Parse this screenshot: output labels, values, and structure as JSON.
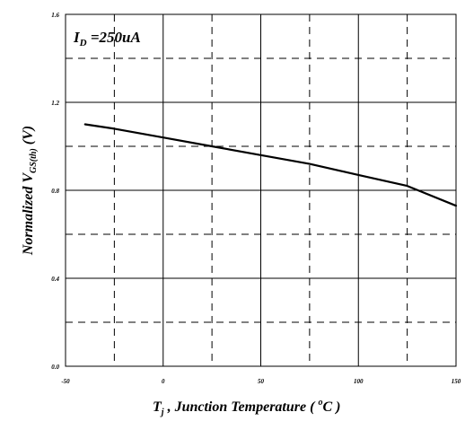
{
  "chart_data": {
    "type": "line",
    "annotation": {
      "main": "I",
      "sub": "D",
      "rest": " =250uA"
    },
    "xlabel": {
      "main": "T",
      "sub": "j",
      "rest": " , Junction Temperature ( ",
      "sup": "o",
      "unit": "C )"
    },
    "ylabel": {
      "main": "Normalized V",
      "sub": "GS(th)",
      "rest": " (V)"
    },
    "xlim": [
      -50,
      150
    ],
    "ylim": [
      0.0,
      1.6
    ],
    "x_ticks": [
      -50,
      0,
      50,
      100,
      150
    ],
    "x_tick_labels": [
      "-50",
      "0",
      "50",
      "100",
      "150"
    ],
    "y_ticks": [
      0.0,
      0.4,
      0.8,
      1.2,
      1.6
    ],
    "y_tick_labels": [
      "0.0",
      "0.4",
      "0.8",
      "1.2",
      "1.6"
    ],
    "grid": true,
    "series": [
      {
        "x": [
          -40,
          -25,
          0,
          25,
          50,
          75,
          100,
          125,
          150
        ],
        "y": [
          1.1,
          1.08,
          1.04,
          1.0,
          0.96,
          0.92,
          0.87,
          0.82,
          0.73
        ]
      }
    ]
  }
}
